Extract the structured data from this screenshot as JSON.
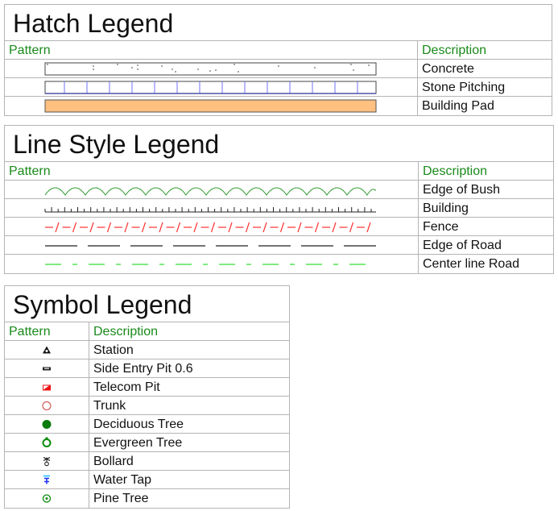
{
  "hatch_legend": {
    "title": "Hatch Legend",
    "pattern_header": "Pattern",
    "description_header": "Description",
    "rows": [
      {
        "description": "Concrete",
        "pattern": "concrete-speckle"
      },
      {
        "description": "Stone Pitching",
        "pattern": "blue-vertical-grid"
      },
      {
        "description": "Building Pad",
        "pattern": "solid-orange",
        "color": "#ffc080"
      }
    ]
  },
  "line_style_legend": {
    "title": "Line Style Legend",
    "pattern_header": "Pattern",
    "description_header": "Description",
    "rows": [
      {
        "description": "Edge of Bush",
        "pattern": "green-scallop",
        "color": "#2e9a2e"
      },
      {
        "description": "Building",
        "pattern": "black-tick-line",
        "color": "#222222"
      },
      {
        "description": "Fence",
        "pattern": "red-dash-slash",
        "color": "#ff3333"
      },
      {
        "description": "Edge of Road",
        "pattern": "black-long-dash",
        "color": "#222222"
      },
      {
        "description": "Center line Road",
        "pattern": "green-dash-dot",
        "color": "#33dd33"
      }
    ]
  },
  "symbol_legend": {
    "title": "Symbol Legend",
    "pattern_header": "Pattern",
    "description_header": "Description",
    "rows": [
      {
        "description": "Station",
        "icon": "triangle-station-icon"
      },
      {
        "description": "Side Entry Pit 0.6",
        "icon": "side-entry-pit-icon"
      },
      {
        "description": "Telecom Pit",
        "icon": "telecom-pit-icon",
        "color": "#ee1111"
      },
      {
        "description": "Trunk",
        "icon": "trunk-circle-icon",
        "color": "#cc4444"
      },
      {
        "description": "Deciduous Tree",
        "icon": "deciduous-tree-icon",
        "color": "#0a7a0a"
      },
      {
        "description": "Evergreen Tree",
        "icon": "evergreen-tree-icon",
        "color": "#0a8a0a"
      },
      {
        "description": "Bollard",
        "icon": "bollard-icon"
      },
      {
        "description": "Water Tap",
        "icon": "water-tap-icon",
        "color": "#2233ff"
      },
      {
        "description": "Pine Tree",
        "icon": "pine-tree-icon",
        "color": "#0a8a0a"
      }
    ]
  },
  "colors": {
    "header_text": "#1a8a1a",
    "border": "#b4b4b4"
  }
}
